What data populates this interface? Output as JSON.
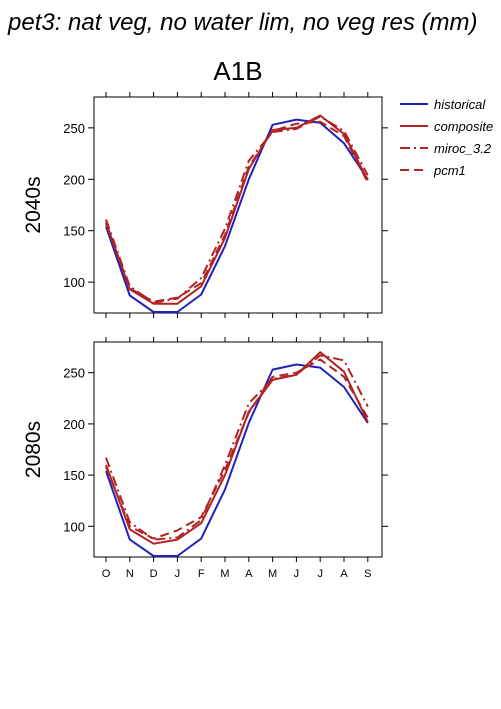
{
  "title": "pet3: nat veg, no water lim, no veg res (mm)",
  "scenario": "A1B",
  "colors": {
    "historical": "#2222bb",
    "future": "#b22222"
  },
  "legend": [
    {
      "name": "historical",
      "dash": ""
    },
    {
      "name": "composite",
      "dash": ""
    },
    {
      "name": "miroc_3.2",
      "dash": "10,4,2,4"
    },
    {
      "name": "pcm1",
      "dash": "9,5"
    }
  ],
  "chart_data": [
    {
      "type": "line",
      "row_label": "2040s",
      "categories": [
        "O",
        "N",
        "D",
        "J",
        "F",
        "M",
        "A",
        "M",
        "J",
        "J",
        "A",
        "S"
      ],
      "ylim": [
        70,
        280
      ],
      "yticks": [
        100,
        150,
        200,
        250
      ],
      "series": [
        {
          "name": "historical",
          "values": [
            154,
            87,
            71,
            71,
            88,
            135,
            200,
            253,
            258,
            255,
            235,
            200
          ]
        },
        {
          "name": "composite",
          "values": [
            158,
            93,
            79,
            79,
            96,
            143,
            210,
            248,
            250,
            262,
            244,
            199
          ]
        },
        {
          "name": "miroc_3.2",
          "values": [
            161,
            96,
            80,
            84,
            104,
            152,
            218,
            246,
            249,
            261,
            247,
            204
          ]
        },
        {
          "name": "pcm1",
          "values": [
            157,
            94,
            81,
            85,
            99,
            146,
            212,
            247,
            254,
            256,
            242,
            197
          ]
        }
      ]
    },
    {
      "type": "line",
      "row_label": "2080s",
      "categories": [
        "O",
        "N",
        "D",
        "J",
        "F",
        "M",
        "A",
        "M",
        "J",
        "J",
        "A",
        "S"
      ],
      "ylim": [
        70,
        280
      ],
      "yticks": [
        100,
        150,
        200,
        250
      ],
      "series": [
        {
          "name": "historical",
          "values": [
            154,
            87,
            71,
            71,
            88,
            136,
            201,
            253,
            258,
            255,
            236,
            201
          ]
        },
        {
          "name": "composite",
          "values": [
            160,
            97,
            83,
            87,
            103,
            150,
            212,
            243,
            248,
            270,
            251,
            202
          ]
        },
        {
          "name": "miroc_3.2",
          "values": [
            167,
            104,
            87,
            89,
            106,
            160,
            220,
            244,
            248,
            267,
            262,
            217
          ]
        },
        {
          "name": "pcm1",
          "values": [
            158,
            100,
            88,
            96,
            109,
            155,
            211,
            246,
            250,
            263,
            246,
            206
          ]
        }
      ]
    }
  ]
}
